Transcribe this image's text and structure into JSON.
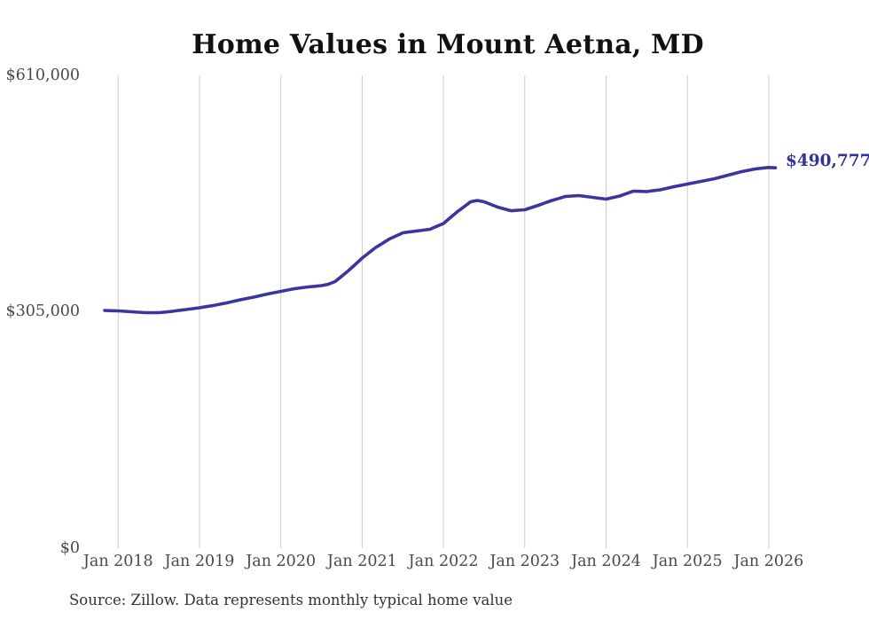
{
  "title": "Home Values in Mount Aetna, MD",
  "annotation": {
    "latest_value_label": "$490,777"
  },
  "source_note": "Source: Zillow. Data represents monthly typical home value",
  "colors": {
    "line": "#3b35a0",
    "annotation": "#32329b",
    "grid": "#cccccc",
    "axis_text": "#4a4a4a",
    "title_text": "#111111"
  },
  "chart_data": {
    "type": "line",
    "title": "Home Values in Mount Aetna, MD",
    "xlabel": "",
    "ylabel": "",
    "ylim": [
      0,
      610000
    ],
    "grid": "vertical-only",
    "legend": "none",
    "y_ticks": [
      {
        "label": "$610,000",
        "value": 610000
      },
      {
        "label": "$305,000",
        "value": 305000
      },
      {
        "label": "$0",
        "value": 0
      }
    ],
    "x_ticks": [
      {
        "label": "Jan 2018",
        "month": "2018-01"
      },
      {
        "label": "Jan 2019",
        "month": "2019-01"
      },
      {
        "label": "Jan 2020",
        "month": "2020-01"
      },
      {
        "label": "Jan 2021",
        "month": "2021-01"
      },
      {
        "label": "Jan 2022",
        "month": "2022-01"
      },
      {
        "label": "Jan 2023",
        "month": "2023-01"
      },
      {
        "label": "Jan 2024",
        "month": "2024-01"
      },
      {
        "label": "Jan 2025",
        "month": "2025-01"
      },
      {
        "label": "Jan 2026",
        "month": "2026-01"
      }
    ],
    "series": [
      {
        "name": "Typical home value (monthly)",
        "color": "#3b35a0",
        "months": [
          "2017-11",
          "2017-12",
          "2018-01",
          "2018-02",
          "2018-03",
          "2018-04",
          "2018-05",
          "2018-06",
          "2018-07",
          "2018-08",
          "2018-09",
          "2018-10",
          "2018-11",
          "2018-12",
          "2019-01",
          "2019-02",
          "2019-03",
          "2019-04",
          "2019-05",
          "2019-06",
          "2019-07",
          "2019-08",
          "2019-09",
          "2019-10",
          "2019-11",
          "2019-12",
          "2020-01",
          "2020-02",
          "2020-03",
          "2020-04",
          "2020-05",
          "2020-06",
          "2020-07",
          "2020-08",
          "2020-09",
          "2020-10",
          "2020-11",
          "2020-12",
          "2021-01",
          "2021-02",
          "2021-03",
          "2021-04",
          "2021-05",
          "2021-06",
          "2021-07",
          "2021-08",
          "2021-09",
          "2021-10",
          "2021-11",
          "2021-12",
          "2022-01",
          "2022-02",
          "2022-03",
          "2022-04",
          "2022-05",
          "2022-06",
          "2022-07",
          "2022-08",
          "2022-09",
          "2022-10",
          "2022-11",
          "2022-12",
          "2023-01",
          "2023-02",
          "2023-03",
          "2023-04",
          "2023-05",
          "2023-06",
          "2023-07",
          "2023-08",
          "2023-09",
          "2023-10",
          "2023-11",
          "2023-12",
          "2024-01",
          "2024-02",
          "2024-03",
          "2024-04",
          "2024-05",
          "2024-06",
          "2024-07",
          "2024-08",
          "2024-09",
          "2024-10",
          "2024-11",
          "2024-12",
          "2025-01",
          "2025-02",
          "2025-03",
          "2025-04",
          "2025-05",
          "2025-06",
          "2025-07",
          "2025-08",
          "2025-09",
          "2025-10",
          "2025-11",
          "2025-12",
          "2026-01",
          "2026-02"
        ],
        "values": [
          306700,
          306400,
          306100,
          305600,
          305000,
          304400,
          303800,
          303800,
          303800,
          304700,
          305600,
          306800,
          307900,
          309000,
          310100,
          311600,
          313000,
          314700,
          316400,
          318400,
          320400,
          322200,
          323900,
          325900,
          327900,
          329600,
          331300,
          333000,
          334700,
          335900,
          337000,
          337900,
          338800,
          340500,
          343900,
          351000,
          358200,
          366200,
          374200,
          381100,
          388000,
          393400,
          398800,
          402900,
          406900,
          408100,
          409200,
          410300,
          411400,
          415200,
          418900,
          426300,
          433700,
          440300,
          446900,
          448600,
          446900,
          443500,
          440000,
          437700,
          435400,
          436000,
          436600,
          439500,
          442300,
          445500,
          448600,
          451200,
          453800,
          454400,
          454900,
          453800,
          452600,
          451500,
          450300,
          452300,
          454300,
          457500,
          460600,
          460400,
          460100,
          461300,
          462400,
          464400,
          466400,
          468100,
          469800,
          471500,
          473200,
          475000,
          476700,
          479000,
          481200,
          483500,
          485800,
          487500,
          489300,
          490300,
          491200,
          490777
        ],
        "latest_value": 490777
      }
    ]
  }
}
